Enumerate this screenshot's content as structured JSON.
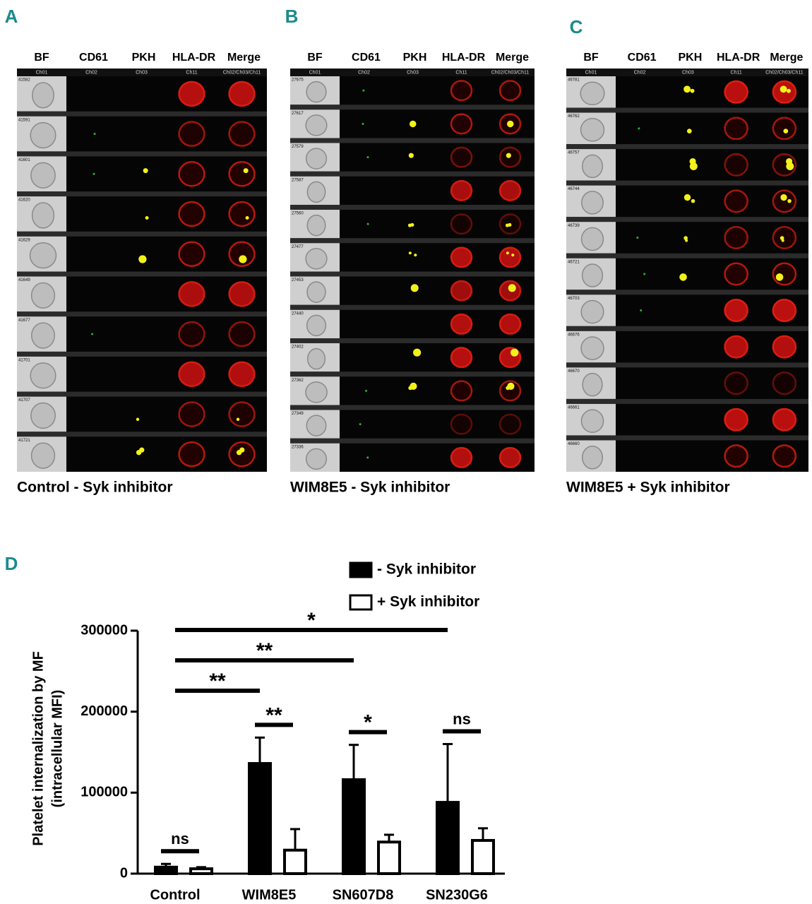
{
  "panels": [
    {
      "letter": "A",
      "columns": [
        "BF",
        "CD61",
        "PKH",
        "HLA-DR",
        "Merge"
      ],
      "channels": [
        "Ch01",
        "Ch02",
        "Ch03",
        "Ch11",
        "Ch02/Ch03/Ch11"
      ],
      "cell_ids": [
        "41582",
        "41591",
        "41601",
        "41620",
        "41629",
        "41649",
        "41677",
        "41701",
        "41707",
        "41721"
      ],
      "caption": "Control - Syk inhibitor"
    },
    {
      "letter": "B",
      "columns": [
        "BF",
        "CD61",
        "PKH",
        "HLA-DR",
        "Merge"
      ],
      "channels": [
        "Ch01",
        "Ch02",
        "Ch03",
        "Ch11",
        "Ch02/Ch03/Ch11"
      ],
      "cell_ids": [
        "27675",
        "27617",
        "27579",
        "27587",
        "27560",
        "27477",
        "27453",
        "27440",
        "27402",
        "27362",
        "27349",
        "27336"
      ],
      "caption": "WIM8E5 - Syk inhibitor"
    },
    {
      "letter": "C",
      "columns": [
        "BF",
        "CD61",
        "PKH",
        "HLA-DR",
        "Merge"
      ],
      "channels": [
        "Ch01",
        "Ch02",
        "Ch03",
        "Ch11",
        "Ch02/Ch03/Ch11"
      ],
      "cell_ids": [
        "46781",
        "46762",
        "46757",
        "46744",
        "46739",
        "46721",
        "46703",
        "46676",
        "46670",
        "46661",
        "46660"
      ],
      "caption": "WIM8E5 + Syk inhibitor"
    }
  ],
  "chart_data": {
    "panel_label": "D",
    "type": "bar",
    "categories": [
      "Control",
      "WIM8E5",
      "SN607D8",
      "SN230G6"
    ],
    "series": [
      {
        "name": "- Syk inhibitor",
        "color": "#000000",
        "values": [
          8000,
          136000,
          116000,
          88000
        ],
        "errors": [
          4000,
          32000,
          43000,
          72000
        ]
      },
      {
        "name": "+ Syk inhibitor",
        "color": "#ffffff",
        "values": [
          6000,
          29000,
          39000,
          41000
        ],
        "errors": [
          2000,
          26000,
          9000,
          15000
        ]
      }
    ],
    "ylabel": [
      "Platelet internalization by MF",
      "(intracellular MFI)"
    ],
    "ylim": [
      0,
      300000
    ],
    "yticks": [
      0,
      100000,
      200000,
      300000
    ],
    "annotations": [
      {
        "label": "*",
        "from": "Control",
        "to": "SN230G6"
      },
      {
        "label": "**",
        "from": "Control",
        "to": "SN607D8"
      },
      {
        "label": "**",
        "from": "Control",
        "to": "WIM8E5"
      },
      {
        "label": "ns",
        "from": "Control",
        "to": "Control"
      },
      {
        "label": "**",
        "from": "WIM8E5",
        "to": "WIM8E5"
      },
      {
        "label": "*",
        "from": "SN607D8",
        "to": "SN607D8"
      },
      {
        "label": "ns",
        "from": "SN230G6",
        "to": "SN230G6"
      }
    ]
  }
}
